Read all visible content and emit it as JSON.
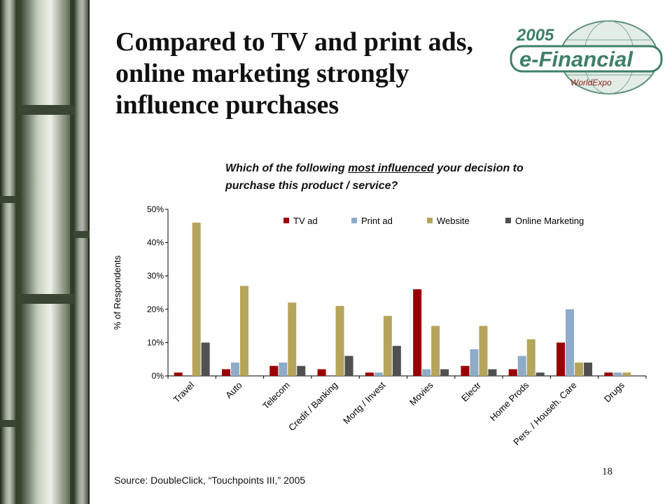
{
  "slide": {
    "title": "Compared to TV and print ads, online marketing strongly influence purchases",
    "question_part1": "Which of the following ",
    "question_underlined": "most influenced",
    "question_part2": " your decision to purchase this product / service?",
    "source": "Source: DoubleClick, “Touchpoints III,” 2005",
    "page_number": "18"
  },
  "logo": {
    "year": "2005",
    "name": "e-Financial",
    "sub": "WorldExpo"
  },
  "colors": {
    "tv": "#990000",
    "print": "#8eacc8",
    "website": "#b5a55a",
    "online": "#505050"
  },
  "chart_data": {
    "type": "bar",
    "categories": [
      "Travel",
      "Auto",
      "Telecom",
      "Credit / Banking",
      "Mortg / Invest",
      "Movies",
      "Electr",
      "Home Prods",
      "Pers. / Househ. Care",
      "Drugs"
    ],
    "series": [
      {
        "name": "TV ad",
        "values": [
          1,
          2,
          3,
          2,
          1,
          26,
          3,
          2,
          10,
          1
        ]
      },
      {
        "name": "Print ad",
        "values": [
          0,
          4,
          4,
          0,
          1,
          2,
          8,
          6,
          20,
          1
        ]
      },
      {
        "name": "Website",
        "values": [
          46,
          27,
          22,
          21,
          18,
          15,
          15,
          11,
          4,
          1
        ]
      },
      {
        "name": "Online Marketing",
        "values": [
          10,
          0,
          3,
          6,
          9,
          2,
          2,
          1,
          4,
          0
        ]
      }
    ],
    "ylabel": "% of Respondents",
    "ylim": [
      0,
      50
    ],
    "yticks": [
      "0%",
      "10%",
      "20%",
      "30%",
      "40%",
      "50%"
    ],
    "legend_position": "top-right",
    "grid": false
  }
}
